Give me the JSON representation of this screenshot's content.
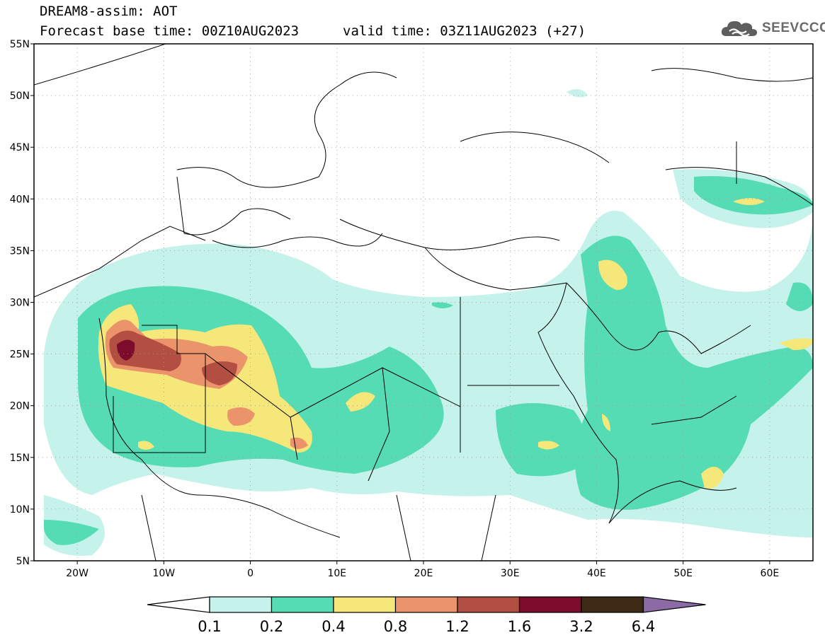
{
  "header": {
    "model_line": "DREAM8-assim: AOT",
    "base_time": "Forecast base time: 00Z10AUG2023",
    "valid_time": "valid time: 03Z11AUG2023 (+27)"
  },
  "logo": {
    "text": "SEEVCCC",
    "icon": "cloud-icon"
  },
  "map": {
    "lat_labels": [
      "55N",
      "50N",
      "45N",
      "40N",
      "35N",
      "30N",
      "25N",
      "20N",
      "15N",
      "10N",
      "5N"
    ],
    "lon_labels": [
      "20W",
      "10W",
      "0",
      "10E",
      "20E",
      "30E",
      "40E",
      "50E",
      "60E"
    ],
    "extent": {
      "lon_min": -25,
      "lon_max": 65,
      "lat_min": 5,
      "lat_max": 55
    },
    "grid": "dotted"
  },
  "colorbar": {
    "labels": [
      "0.1",
      "0.2",
      "0.4",
      "0.8",
      "1.2",
      "1.6",
      "3.2",
      "6.4"
    ],
    "colors": [
      "#ffffff",
      "#c6f2ec",
      "#56dcb4",
      "#f5e77a",
      "#eb936b",
      "#b24f42",
      "#7c0b2c",
      "#3f2a17",
      "#8b6aa6"
    ]
  }
}
